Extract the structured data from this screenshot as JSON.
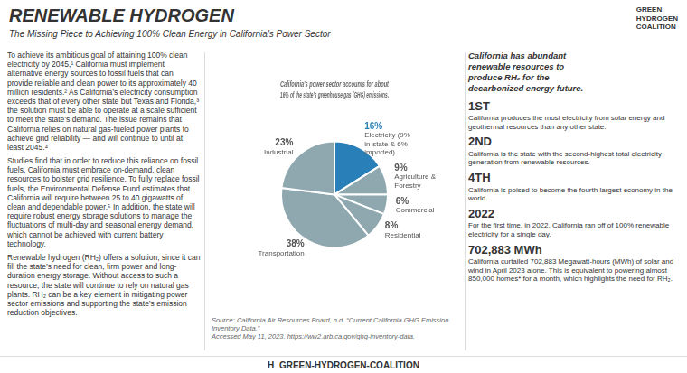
{
  "chart_data": {
    "type": "pie",
    "title": "California’s power sector accounts for about\n16% of the state’s greenhouse gas (GHG) emissions.",
    "categories": [
      "Electricity (9% in-state & 6% imported)",
      "Agriculture & Forestry",
      "Commercial",
      "Residential",
      "Transportation",
      "Industrial"
    ],
    "values": [
      16,
      9,
      6,
      8,
      38,
      23
    ],
    "value_labels": [
      "16%",
      "9%",
      "6%",
      "8%",
      "38%",
      "23%"
    ],
    "colors": [
      "#2980b9",
      "#8fa8b0",
      "#8fa8b0",
      "#8fa8b0",
      "#8fa8b0",
      "#8fa8b0"
    ],
    "data_labels": true,
    "annotations": [
      "RENEWABLE HYDROGEN",
      "The Missing Piece to Achieving 100% Clean Energy in California's Power Sector",
      "GREEN\nHYDROGEN\nCOALITION",
      "To achieve its ambitious goal of attaining 100% clean electricity by 2045,¹ California must implement alternative energy sources to fossil fuels that can provide reliable and clean power to its approximately 40 million residents.² As California’s electricity consumption exceeds that of every other state but Texas and Florida,³ the solution must be able to operate at a scale sufficient to meet the state’s demand. The issue remains that California relies on natural gas-fueled power plants to achieve grid reliability — and will continue to until at least 2045.⁴",
      "Studies find that in order to reduce this reliance on fossil fuels, California must embrace on-demand, clean resources to bolster grid resilience. To fully replace fossil fuels, the Environmental Defense Fund estimates that California will require between 25 to 40 gigawatts of clean and dependable power.⁵ In addition, the state will require robust energy storage solutions to manage the fluctuations of multi-day and seasonal energy demand, which cannot be achieved with current battery technology.",
      "Renewable hydrogen (RH₂) offers a solution, since it can fill the state’s need for clean, firm power and long-duration energy storage. Without access to such a resource, the state will continue to rely on natural gas plants. RH₂ can be a key element in mitigating power sector emissions and supporting the state’s emission reduction objectives.",
      "Source: California Air Resources Board, n.d. “Current California GHG Emission Inventory Data.”\nAccessed May 11, 2023. https://ww2.arb.ca.gov/ghg-inventory-data.",
      "California has abundant\nrenewable resources to\nproduce RH₂ for the\ndecarbonized energy future.",
      "1ST",
      "California produces the most electricity from solar energy and geothermal resources than any other state.",
      "2ND",
      "California is the state with the second-highest total electricity generation from renewable resources.",
      "4TH",
      "California is poised to become the fourth largest economy in the world.",
      "2022",
      "For the first time, in 2022, California ran off of 100% renewable electricity for a single day.",
      "702,883 MWh",
      "California curtailed 702,883 Megawatt-hours (MWh) of solar and wind in April 2023 alone. This is equivalent to powering almost 850,000 homes* for a month, which highlights the need for RH₂.",
      "H  GREEN-HYDROGEN-COALITION"
    ]
  }
}
